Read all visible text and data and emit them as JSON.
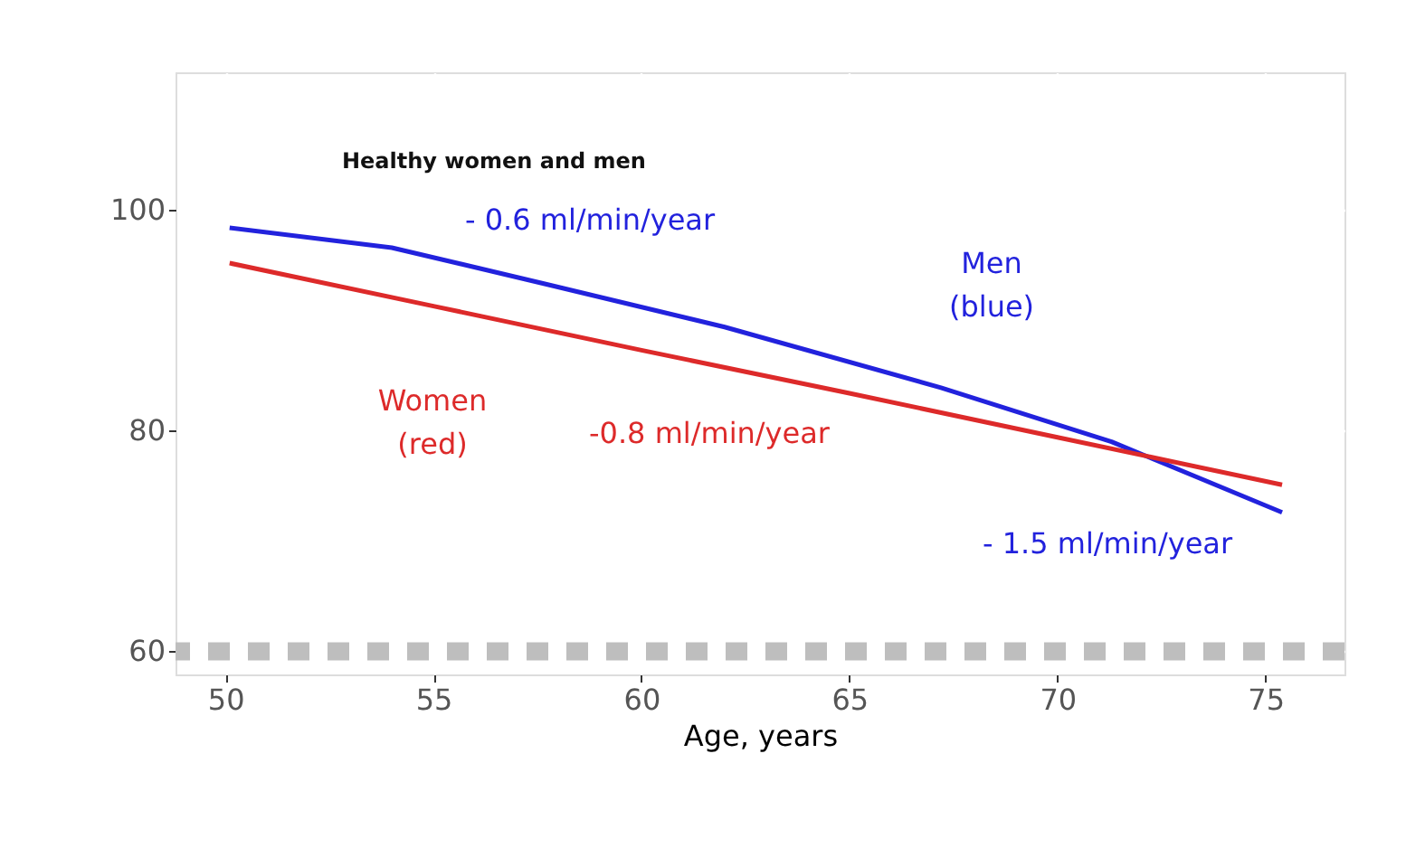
{
  "chart_data": {
    "type": "line",
    "xlabel": "Age, years",
    "xlim": [
      48.8,
      76.9
    ],
    "xticks": [
      50,
      55,
      60,
      65,
      70,
      75
    ],
    "ylim": [
      57.9,
      112.5
    ],
    "yticks": [
      60,
      80,
      100
    ],
    "grid": true,
    "line_style": "solid",
    "marker": "none",
    "series": [
      {
        "color": "#2222dd",
        "x": [
          50.1,
          54,
          57.7,
          62,
          67.2,
          71.3,
          75.4
        ],
        "values": [
          98.4,
          96.6,
          93.3,
          89.4,
          83.9,
          79.0,
          72.6
        ]
      },
      {
        "color": "#dd2a2a",
        "x": [
          50.1,
          55,
          60,
          65,
          70,
          75.4
        ],
        "values": [
          95.2,
          91.3,
          87.3,
          83.4,
          79.4,
          75.1
        ]
      }
    ],
    "ref_lines": [
      {
        "axis": "y",
        "value": 60,
        "color": "#bebebe",
        "line_style": "dashed"
      }
    ],
    "annotations": [
      "Healthy women and men",
      "- 0.6 ml/min/year",
      "Men\n(blue)",
      "Women\n(red)",
      "-0.8 ml/min/year",
      "- 1.5 ml/min/year"
    ]
  }
}
